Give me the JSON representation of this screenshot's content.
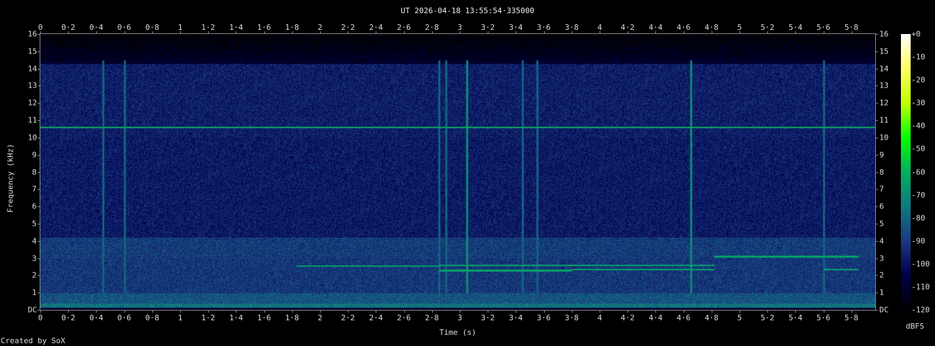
{
  "chart_data": {
    "type": "heatmap",
    "title": "UT 2026-04-18 13:55:54·335000",
    "xlabel": "Time (s)",
    "ylabel": "Frequency (kHz)",
    "xlim": [
      0,
      5.97
    ],
    "ylim": [
      0,
      16
    ],
    "x_ticks": [
      "0",
      "0·2",
      "0·4",
      "0·6",
      "0·8",
      "1",
      "1·2",
      "1·4",
      "1·6",
      "1·8",
      "2",
      "2·2",
      "2·4",
      "2·6",
      "2·8",
      "3",
      "3·2",
      "3·4",
      "3·6",
      "3·8",
      "4",
      "4·2",
      "4·4",
      "4·6",
      "4·8",
      "5",
      "5·2",
      "5·4",
      "5·6",
      "5·8"
    ],
    "y_ticks": [
      "DC",
      "1",
      "2",
      "3",
      "4",
      "5",
      "6",
      "7",
      "8",
      "9",
      "10",
      "11",
      "12",
      "13",
      "14",
      "15",
      "16"
    ],
    "colorbar": {
      "unit": "dBFS",
      "range": [
        -120,
        0
      ],
      "ticks": [
        "+0",
        "-10",
        "-20",
        "-30",
        "-40",
        "-50",
        "-60",
        "-70",
        "-80",
        "-90",
        "-100",
        "-110",
        "-120"
      ],
      "palette": [
        "#000000",
        "#00004a",
        "#1a3a80",
        "#107a80",
        "#00b060",
        "#00ff00",
        "#c0ff00",
        "#ffff60",
        "#ffffff"
      ]
    },
    "features": {
      "steady_tone_khz": 10.6,
      "horizontal_tones": [
        {
          "khz": 2.55,
          "t": [
            1.83,
            2.85
          ]
        },
        {
          "khz": 2.6,
          "t": [
            2.85,
            3.8
          ]
        },
        {
          "khz": 2.3,
          "t": [
            2.85,
            3.8
          ]
        },
        {
          "khz": 2.6,
          "t": [
            3.8,
            4.82
          ]
        },
        {
          "khz": 2.35,
          "t": [
            3.8,
            4.82
          ]
        },
        {
          "khz": 3.1,
          "t": [
            4.82,
            5.85
          ]
        },
        {
          "khz": 2.35,
          "t": [
            5.6,
            5.85
          ]
        }
      ],
      "vertical_events_s": [
        0.45,
        0.6,
        2.85,
        2.9,
        3.05,
        3.45,
        3.55,
        4.65,
        5.6
      ]
    }
  },
  "footer": "Created by SoX"
}
